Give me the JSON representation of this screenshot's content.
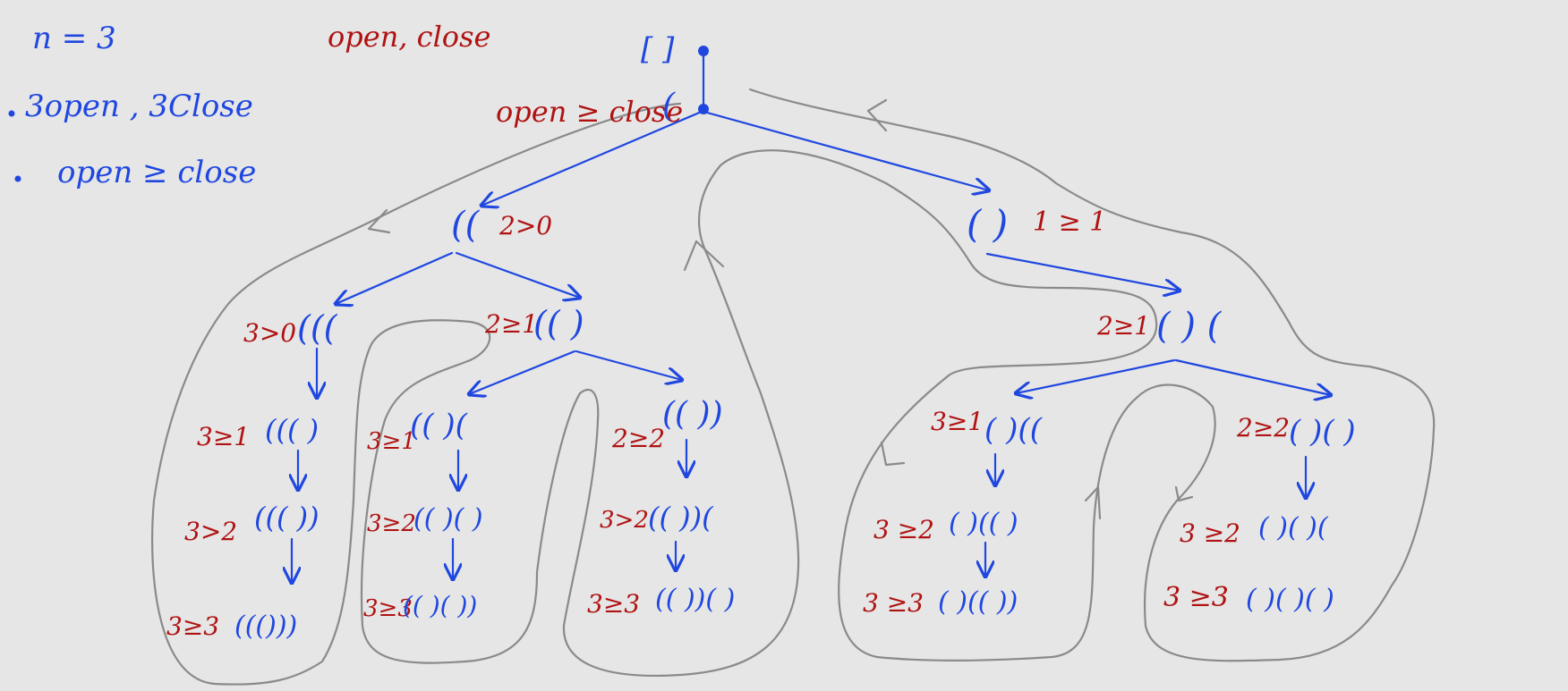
{
  "notes": {
    "n_value": "n = 3",
    "rule_1": "3open , 3Close",
    "rule_2": "open ≥ close",
    "header": "open, close",
    "root_condition": "open ≥ close"
  },
  "colors": {
    "node": "#1f47e0",
    "condition": "#b01212",
    "trace": "#8a8a8a",
    "background": "#e6e6e6"
  },
  "tree": {
    "root": {
      "label": "[ ]"
    },
    "level1": {
      "label": "("
    },
    "left": {
      "label": "((",
      "cond": "2>0"
    },
    "right": {
      "label": "( )",
      "cond": "1 ≥ 1"
    },
    "ll": {
      "label": "(((",
      "cond": "3>0"
    },
    "lr": {
      "label": "(( )",
      "cond": "2≥1"
    },
    "rr": {
      "label": "( ) (",
      "cond": "2≥1"
    },
    "ll_1": {
      "label": "((( )",
      "cond": "3≥1"
    },
    "ll_2": {
      "label": "((( ))",
      "cond": "3>2"
    },
    "ll_3": {
      "label": "((()))",
      "cond": "3≥3"
    },
    "lrl_1": {
      "label": "(( )(",
      "cond": "3≥1"
    },
    "lrl_2": {
      "label": "(( )( )",
      "cond": "3≥2"
    },
    "lrl_3": {
      "label": "(( )( ))",
      "cond": "3≥3"
    },
    "lrr_1": {
      "label": "(( ))",
      "cond": "2≥2"
    },
    "lrr_2": {
      "label": "(( ))(",
      "cond": "3>2"
    },
    "lrr_3": {
      "label": "(( ))( )",
      "cond": "3≥3"
    },
    "rrl_1": {
      "label": "( )((",
      "cond": "3≥1"
    },
    "rrl_2": {
      "label": "( )(( )",
      "cond": "3 ≥2"
    },
    "rrl_3": {
      "label": "( )(( ))",
      "cond": "3 ≥3"
    },
    "rrr_1": {
      "label": "( )( )",
      "cond": "2≥2"
    },
    "rrr_2": {
      "label": "( )( )(",
      "cond": "3 ≥2"
    },
    "rrr_3": {
      "label": "( )( )( )",
      "cond": "3 ≥3"
    }
  }
}
